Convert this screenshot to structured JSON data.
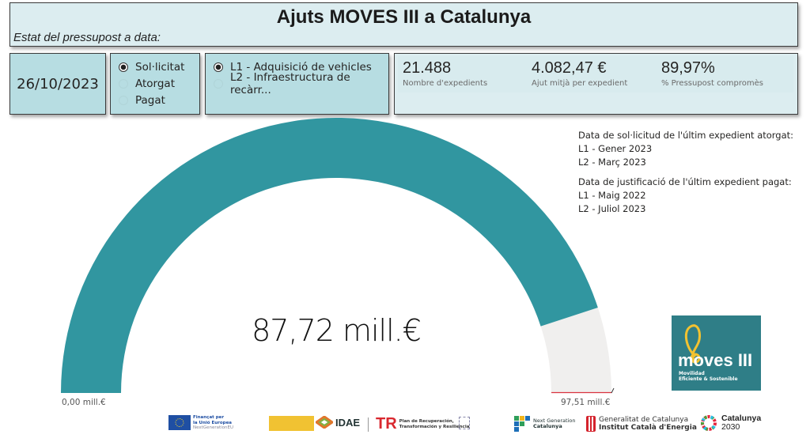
{
  "header": {
    "title": "Ajuts MOVES III a Catalunya",
    "subtitle": "Estat del pressupost a data:"
  },
  "date_card": {
    "date": "26/10/2023"
  },
  "status_filter": {
    "options": [
      {
        "label": "Sol·licitat",
        "selected": true
      },
      {
        "label": "Atorgat",
        "selected": false
      },
      {
        "label": "Pagat",
        "selected": false
      }
    ]
  },
  "line_filter": {
    "options": [
      {
        "label": "L1 - Adquisició de vehicles",
        "selected": true
      },
      {
        "label": "L2 - Infraestructura de recàrr...",
        "selected": false
      }
    ]
  },
  "kpis": [
    {
      "value": "21.488",
      "label": "Nombre d'expedients"
    },
    {
      "value": "4.082,47 €",
      "label": "Ajut mitjà per expedient"
    },
    {
      "value": "89,97%",
      "label": "% Pressupost compromès"
    }
  ],
  "notes": {
    "granted_title": "Data de sol·licitud de l'últim expedient atorgat:",
    "granted_l1": "L1 - Gener 2023",
    "granted_l2": "L2 - Març 2023",
    "paid_title": "Data de justificació de l'últim expedient pagat:",
    "paid_l1": "L1 - Maig 2022",
    "paid_l2": "L2 - Juliol 2023"
  },
  "gauge": {
    "value_label": "87,72 mill.€",
    "min_label": "0,00 mill.€",
    "max_label": "97,51 mill.€",
    "value": 87.72,
    "min": 0,
    "max": 97.51,
    "fill_color": "#3196a0",
    "track_color": "#f0efee",
    "target_color": "#d9333f"
  },
  "chart_data": {
    "type": "gauge",
    "title": "Ajuts MOVES III a Catalunya",
    "value": 87.72,
    "min": 0,
    "max": 97.51,
    "unit": "mill.€",
    "value_label": "87,72 mill.€",
    "min_label": "0,00 mill.€",
    "max_label": "97,51 mill.€",
    "target": 97.51
  },
  "moves_logo": {
    "word": "moves III",
    "tagline_1": "Movilidad",
    "tagline_2": "Eficiente & Sostenible"
  },
  "footer": {
    "eu_1": "Finançat per",
    "eu_2": "la Unió Europea",
    "eu_3": "NextGenerationEU",
    "idae": "IDAE",
    "prtr_1": "Plan de Recuperación,",
    "prtr_2": "Transformación y Resiliencia",
    "ngcat_1": "Next Generation",
    "ngcat_2": "Catalunya",
    "gencat_1": "Generalitat de Catalunya",
    "gencat_2": "Institut Català d'Energia",
    "cat2030_1": "Catalunya",
    "cat2030_2": "2030"
  }
}
